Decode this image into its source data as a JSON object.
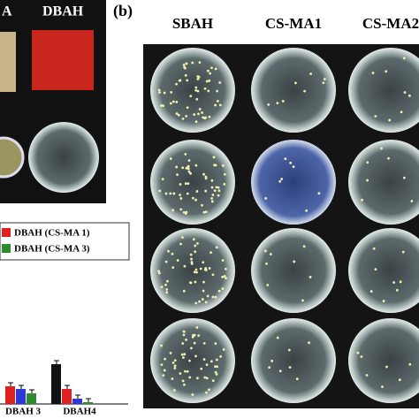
{
  "panel_a": {
    "labels": [
      "A",
      "DBAH"
    ],
    "chart": {
      "type": "bar",
      "legend": [
        "DBAH (CS-MA 1)",
        "DBAH (CS-MA 3)"
      ],
      "categories": [
        "DBAH 3",
        "DBAH4"
      ],
      "series": [
        {
          "color": "#111111",
          "values": [
            null,
            45
          ]
        },
        {
          "color": "#e02020",
          "values": [
            20,
            17
          ]
        },
        {
          "color": "#2a3ad8",
          "values": [
            17,
            6
          ]
        },
        {
          "color": "#2e8b2e",
          "values": [
            12,
            2
          ]
        }
      ],
      "ylim": [
        0,
        60
      ]
    }
  },
  "panel_b": {
    "label": "(b)",
    "columns": [
      "SBAH",
      "CS-MA1",
      "CS-MA2"
    ]
  }
}
